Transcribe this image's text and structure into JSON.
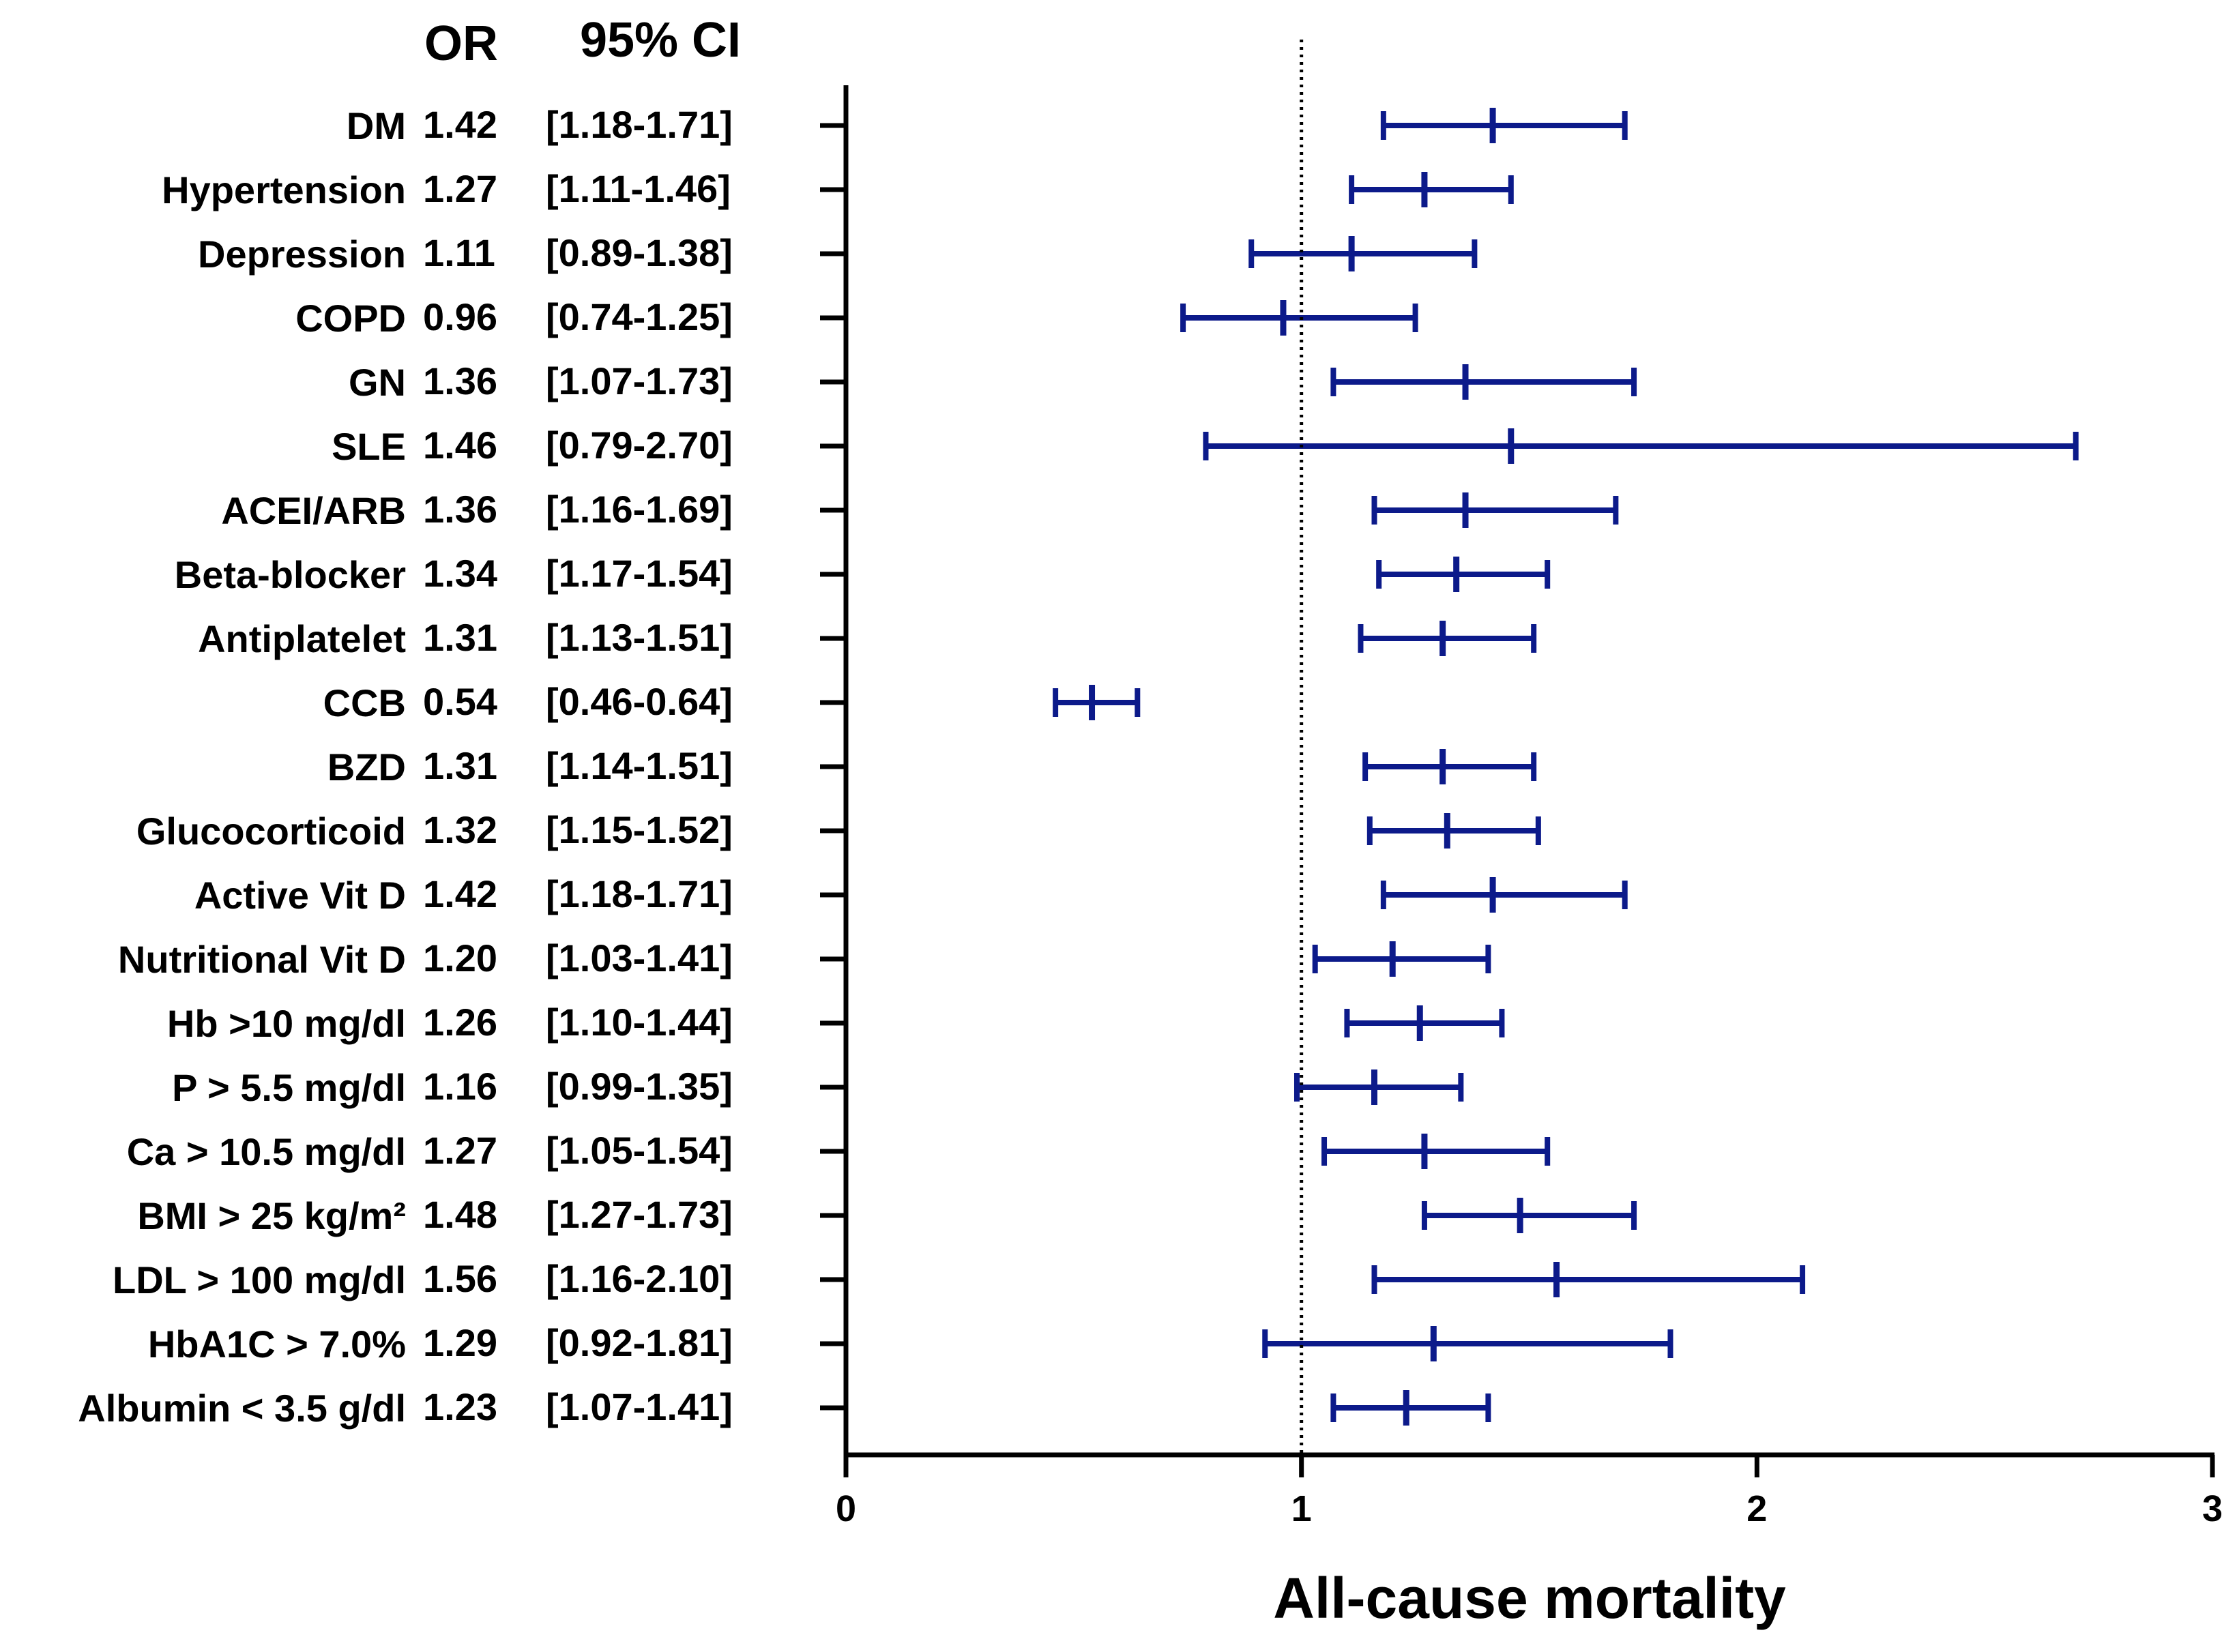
{
  "chart_data": {
    "type": "forest",
    "title": "",
    "xlabel": "All-cause mortality",
    "ylabel": "",
    "xlim": [
      0,
      3
    ],
    "xticks": [
      "0",
      "1",
      "2",
      "3"
    ],
    "reference_line": 1,
    "column_headers": {
      "or": "OR",
      "ci": "95% CI"
    },
    "series_color": "#0c1a8a",
    "rows": [
      {
        "label": "DM",
        "or": 1.42,
        "lo": 1.18,
        "hi": 1.71,
        "or_text": "1.42",
        "ci_text": "[1.18-1.71]"
      },
      {
        "label": "Hypertension",
        "or": 1.27,
        "lo": 1.11,
        "hi": 1.46,
        "or_text": "1.27",
        "ci_text": "[1.11-1.46]"
      },
      {
        "label": "Depression",
        "or": 1.11,
        "lo": 0.89,
        "hi": 1.38,
        "or_text": "1.11",
        "ci_text": "[0.89-1.38]"
      },
      {
        "label": "COPD",
        "or": 0.96,
        "lo": 0.74,
        "hi": 1.25,
        "or_text": "0.96",
        "ci_text": "[0.74-1.25]"
      },
      {
        "label": "GN",
        "or": 1.36,
        "lo": 1.07,
        "hi": 1.73,
        "or_text": "1.36",
        "ci_text": "[1.07-1.73]"
      },
      {
        "label": "SLE",
        "or": 1.46,
        "lo": 0.79,
        "hi": 2.7,
        "or_text": "1.46",
        "ci_text": "[0.79-2.70]"
      },
      {
        "label": "ACEI/ARB",
        "or": 1.36,
        "lo": 1.16,
        "hi": 1.69,
        "or_text": "1.36",
        "ci_text": "[1.16-1.69]"
      },
      {
        "label": "Beta-blocker",
        "or": 1.34,
        "lo": 1.17,
        "hi": 1.54,
        "or_text": "1.34",
        "ci_text": "[1.17-1.54]"
      },
      {
        "label": "Antiplatelet",
        "or": 1.31,
        "lo": 1.13,
        "hi": 1.51,
        "or_text": "1.31",
        "ci_text": "[1.13-1.51]"
      },
      {
        "label": "CCB",
        "or": 0.54,
        "lo": 0.46,
        "hi": 0.64,
        "or_text": "0.54",
        "ci_text": "[0.46-0.64]"
      },
      {
        "label": "BZD",
        "or": 1.31,
        "lo": 1.14,
        "hi": 1.51,
        "or_text": "1.31",
        "ci_text": "[1.14-1.51]"
      },
      {
        "label": "Glucocorticoid",
        "or": 1.32,
        "lo": 1.15,
        "hi": 1.52,
        "or_text": "1.32",
        "ci_text": "[1.15-1.52]"
      },
      {
        "label": "Active Vit D",
        "or": 1.42,
        "lo": 1.18,
        "hi": 1.71,
        "or_text": "1.42",
        "ci_text": "[1.18-1.71]"
      },
      {
        "label": "Nutritional Vit D",
        "or": 1.2,
        "lo": 1.03,
        "hi": 1.41,
        "or_text": "1.20",
        "ci_text": "[1.03-1.41]"
      },
      {
        "label": "Hb >10 mg/dl",
        "or": 1.26,
        "lo": 1.1,
        "hi": 1.44,
        "or_text": "1.26",
        "ci_text": "[1.10-1.44]"
      },
      {
        "label": "P > 5.5 mg/dl",
        "or": 1.16,
        "lo": 0.99,
        "hi": 1.35,
        "or_text": "1.16",
        "ci_text": "[0.99-1.35]"
      },
      {
        "label": "Ca > 10.5 mg/dl",
        "or": 1.27,
        "lo": 1.05,
        "hi": 1.54,
        "or_text": "1.27",
        "ci_text": "[1.05-1.54]"
      },
      {
        "label": "BMI > 25 kg/m²",
        "or": 1.48,
        "lo": 1.27,
        "hi": 1.73,
        "or_text": "1.48",
        "ci_text": "[1.27-1.73]"
      },
      {
        "label": "LDL > 100 mg/dl",
        "or": 1.56,
        "lo": 1.16,
        "hi": 2.1,
        "or_text": "1.56",
        "ci_text": "[1.16-2.10]"
      },
      {
        "label": "HbA1C > 7.0%",
        "or": 1.29,
        "lo": 0.92,
        "hi": 1.81,
        "or_text": "1.29",
        "ci_text": "[0.92-1.81]"
      },
      {
        "label": "Albumin < 3.5 g/dl",
        "or": 1.23,
        "lo": 1.07,
        "hi": 1.41,
        "or_text": "1.23",
        "ci_text": "[1.07-1.41]"
      }
    ]
  }
}
